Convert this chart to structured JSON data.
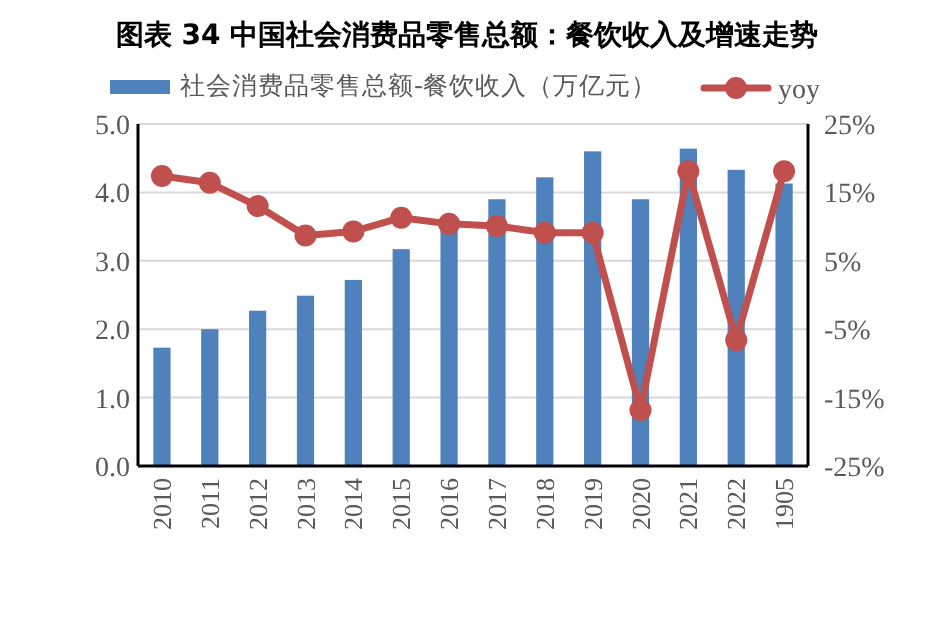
{
  "chart_data": {
    "type": "bar",
    "title": "图表 34 中国社会消费品零售总额：餐饮收入及增速走势",
    "categories": [
      "2010",
      "2011",
      "2012",
      "2013",
      "2014",
      "2015",
      "2016",
      "2017",
      "2018",
      "2019",
      "2020",
      "2021",
      "2022",
      "1905"
    ],
    "series": [
      {
        "name": "社会消费品零售总额-餐饮收入（万亿元）",
        "color": "#4f81bd",
        "values": [
          1.73,
          2.0,
          2.27,
          2.49,
          2.72,
          3.17,
          3.48,
          3.9,
          4.22,
          4.6,
          3.9,
          4.64,
          4.33,
          4.13
        ]
      },
      {
        "name": "yoy",
        "type": "line",
        "axis": "y2",
        "color": "#c0504d",
        "marker": "circle",
        "values": [
          17.4,
          16.4,
          13.0,
          8.7,
          9.3,
          11.3,
          10.4,
          10.1,
          9.1,
          9.1,
          -16.8,
          18.1,
          -6.6,
          18.1
        ]
      }
    ],
    "ylim": [
      0,
      5
    ],
    "yticks": [
      {
        "value": 0,
        "label": "0.0"
      },
      {
        "value": 1,
        "label": "1.0"
      },
      {
        "value": 2,
        "label": "2.0"
      },
      {
        "value": 3,
        "label": "3.0"
      },
      {
        "value": 4,
        "label": "4.0"
      },
      {
        "value": 5,
        "label": "5.0"
      }
    ],
    "y2lim": [
      -25,
      25
    ],
    "y2ticks": [
      {
        "value": -25,
        "label": "-25%"
      },
      {
        "value": -15,
        "label": "-15%"
      },
      {
        "value": -5,
        "label": "-5%"
      },
      {
        "value": 5,
        "label": "5%"
      },
      {
        "value": 15,
        "label": "15%"
      },
      {
        "value": 25,
        "label": "25%"
      }
    ],
    "grid": "y",
    "legend": "top"
  }
}
